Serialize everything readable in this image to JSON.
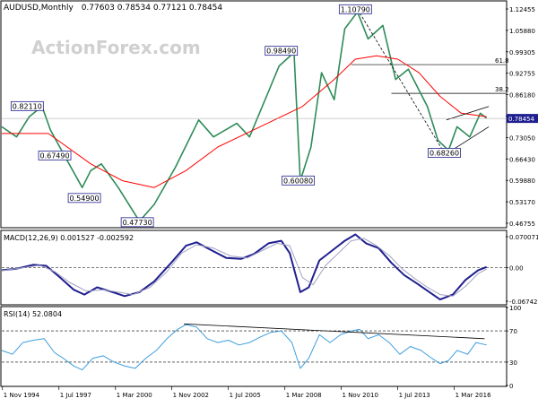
{
  "header": {
    "symbol": "AUDUSD,Monthly",
    "ohlc": "0.77603 0.78534 0.77121 0.78454"
  },
  "watermark": "ActionForex.com",
  "chart_data": [
    {
      "type": "line",
      "panel": "price",
      "title": "AUDUSD,Monthly  0.77603 0.78534 0.77121 0.78454",
      "y_ticks": [
        "1.12455",
        "1.05880",
        "0.99305",
        "0.92755",
        "0.86180",
        "0.79605",
        "0.73050",
        "0.66430",
        "0.59880",
        "0.53170",
        "0.46755"
      ],
      "ylim": [
        0.4636,
        1.13
      ],
      "last_price": "0.78454",
      "fibonacci": [
        {
          "label": "61.8",
          "value": 0.944
        },
        {
          "label": "38.2",
          "value": 0.8589
        }
      ],
      "annotations": [
        {
          "label": "0.82110",
          "x": 1996.0,
          "value": 0.8211
        },
        {
          "label": "0.67490",
          "x": 1997.3,
          "value": 0.6749
        },
        {
          "label": "0.54900",
          "x": 1998.7,
          "value": 0.549
        },
        {
          "label": "0.47730",
          "x": 2001.2,
          "value": 0.4773
        },
        {
          "label": "0.98490",
          "x": 2008.0,
          "value": 0.9849
        },
        {
          "label": "0.60080",
          "x": 2008.8,
          "value": 0.6008
        },
        {
          "label": "1.10790",
          "x": 2011.5,
          "value": 1.1079
        },
        {
          "label": "0.68260",
          "x": 2015.7,
          "value": 0.6826
        }
      ],
      "price_path": [
        [
          1994.8,
          0.76
        ],
        [
          1995.5,
          0.73
        ],
        [
          1996.1,
          0.79
        ],
        [
          1996.7,
          0.82
        ],
        [
          1997.1,
          0.75
        ],
        [
          1997.8,
          0.67
        ],
        [
          1998.6,
          0.58
        ],
        [
          1999.0,
          0.63
        ],
        [
          1999.5,
          0.65
        ],
        [
          2000.3,
          0.58
        ],
        [
          2001.3,
          0.48
        ],
        [
          2002.0,
          0.53
        ],
        [
          2003.0,
          0.64
        ],
        [
          2004.1,
          0.78
        ],
        [
          2004.8,
          0.73
        ],
        [
          2005.9,
          0.77
        ],
        [
          2006.5,
          0.73
        ],
        [
          2007.3,
          0.85
        ],
        [
          2007.9,
          0.94
        ],
        [
          2008.6,
          0.98
        ],
        [
          2008.9,
          0.6
        ],
        [
          2009.4,
          0.7
        ],
        [
          2009.9,
          0.92
        ],
        [
          2010.5,
          0.84
        ],
        [
          2011.0,
          1.05
        ],
        [
          2011.6,
          1.1
        ],
        [
          2012.1,
          1.02
        ],
        [
          2012.8,
          1.06
        ],
        [
          2013.4,
          0.9
        ],
        [
          2014.0,
          0.93
        ],
        [
          2014.9,
          0.82
        ],
        [
          2015.4,
          0.72
        ],
        [
          2015.9,
          0.69
        ],
        [
          2016.3,
          0.76
        ],
        [
          2016.9,
          0.73
        ],
        [
          2017.4,
          0.8
        ],
        [
          2017.7,
          0.785
        ]
      ],
      "moving_average": [
        [
          1994.8,
          0.74
        ],
        [
          1997.0,
          0.74
        ],
        [
          1999.0,
          0.65
        ],
        [
          2000.5,
          0.6
        ],
        [
          2002.0,
          0.58
        ],
        [
          2003.5,
          0.63
        ],
        [
          2005.0,
          0.7
        ],
        [
          2007.0,
          0.76
        ],
        [
          2009.0,
          0.82
        ],
        [
          2010.5,
          0.9
        ],
        [
          2011.5,
          0.96
        ],
        [
          2012.5,
          0.97
        ],
        [
          2013.5,
          0.96
        ],
        [
          2014.5,
          0.92
        ],
        [
          2015.5,
          0.85
        ],
        [
          2016.5,
          0.8
        ],
        [
          2017.7,
          0.79
        ]
      ],
      "trendlines": [
        {
          "name": "decline",
          "points": [
            [
              2011.6,
              1.1079
            ],
            [
              2015.7,
              0.6826
            ]
          ]
        },
        {
          "name": "channel-upper",
          "points": [
            [
              2015.8,
              0.78
            ],
            [
              2017.8,
              0.82
            ]
          ]
        },
        {
          "name": "channel-lower",
          "points": [
            [
              2015.8,
              0.68
            ],
            [
              2017.8,
              0.76
            ]
          ]
        }
      ]
    },
    {
      "type": "line",
      "panel": "macd",
      "title": "MACD(12,26,9) 0.001527 -0.002592",
      "y_ticks": [
        "0.070071",
        "0.00",
        "-0.067423"
      ],
      "ylim": [
        -0.074,
        0.0745
      ],
      "zero_line": 0,
      "series": [
        {
          "role": "macd",
          "points": [
            [
              1994.8,
              -0.005
            ],
            [
              1995.5,
              -0.002
            ],
            [
              1996.3,
              0.006
            ],
            [
              1996.9,
              0.004
            ],
            [
              1997.5,
              -0.018
            ],
            [
              1998.2,
              -0.045
            ],
            [
              1998.7,
              -0.055
            ],
            [
              1999.3,
              -0.04
            ],
            [
              1999.9,
              -0.048
            ],
            [
              2000.6,
              -0.058
            ],
            [
              2001.3,
              -0.05
            ],
            [
              2002.0,
              -0.028
            ],
            [
              2002.8,
              0.01
            ],
            [
              2003.5,
              0.045
            ],
            [
              2004.0,
              0.052
            ],
            [
              2004.6,
              0.038
            ],
            [
              2005.4,
              0.02
            ],
            [
              2006.1,
              0.018
            ],
            [
              2006.7,
              0.028
            ],
            [
              2007.4,
              0.05
            ],
            [
              2008.0,
              0.055
            ],
            [
              2008.4,
              0.03
            ],
            [
              2008.9,
              -0.05
            ],
            [
              2009.3,
              -0.04
            ],
            [
              2009.8,
              0.015
            ],
            [
              2010.4,
              0.035
            ],
            [
              2011.0,
              0.055
            ],
            [
              2011.5,
              0.068
            ],
            [
              2012.0,
              0.05
            ],
            [
              2012.6,
              0.04
            ],
            [
              2013.2,
              0.01
            ],
            [
              2013.8,
              -0.015
            ],
            [
              2014.4,
              -0.032
            ],
            [
              2015.0,
              -0.05
            ],
            [
              2015.5,
              -0.065
            ],
            [
              2016.1,
              -0.055
            ],
            [
              2016.7,
              -0.025
            ],
            [
              2017.3,
              -0.005
            ],
            [
              2017.7,
              0.0015
            ]
          ]
        },
        {
          "role": "signal",
          "points": [
            [
              1994.8,
              -0.006
            ],
            [
              1995.8,
              0.0
            ],
            [
              1996.6,
              0.005
            ],
            [
              1997.3,
              -0.008
            ],
            [
              1998.0,
              -0.03
            ],
            [
              1998.8,
              -0.048
            ],
            [
              1999.6,
              -0.045
            ],
            [
              2000.3,
              -0.05
            ],
            [
              2001.0,
              -0.055
            ],
            [
              2001.8,
              -0.04
            ],
            [
              2002.6,
              -0.008
            ],
            [
              2003.3,
              0.03
            ],
            [
              2004.0,
              0.047
            ],
            [
              2004.8,
              0.04
            ],
            [
              2005.6,
              0.024
            ],
            [
              2006.4,
              0.02
            ],
            [
              2007.1,
              0.035
            ],
            [
              2007.8,
              0.05
            ],
            [
              2008.4,
              0.045
            ],
            [
              2009.0,
              -0.02
            ],
            [
              2009.5,
              -0.035
            ],
            [
              2010.1,
              0.005
            ],
            [
              2010.7,
              0.03
            ],
            [
              2011.3,
              0.055
            ],
            [
              2011.9,
              0.06
            ],
            [
              2012.5,
              0.045
            ],
            [
              2013.1,
              0.025
            ],
            [
              2013.7,
              -0.002
            ],
            [
              2014.3,
              -0.022
            ],
            [
              2014.9,
              -0.04
            ],
            [
              2015.5,
              -0.055
            ],
            [
              2016.1,
              -0.058
            ],
            [
              2016.7,
              -0.038
            ],
            [
              2017.3,
              -0.012
            ],
            [
              2017.7,
              -0.0026
            ]
          ]
        }
      ]
    },
    {
      "type": "line",
      "panel": "rsi",
      "title": "RSI(14) 52.0804",
      "y_ticks": [
        "100",
        "70",
        "30",
        "0"
      ],
      "ylim": [
        0,
        100
      ],
      "levels": [
        70,
        30
      ],
      "series": [
        {
          "role": "rsi",
          "points": [
            [
              1994.8,
              45
            ],
            [
              1995.3,
              40
            ],
            [
              1995.8,
              55
            ],
            [
              1996.3,
              58
            ],
            [
              1996.8,
              60
            ],
            [
              1997.3,
              42
            ],
            [
              1997.7,
              35
            ],
            [
              1998.2,
              25
            ],
            [
              1998.6,
              20
            ],
            [
              1999.1,
              35
            ],
            [
              1999.6,
              38
            ],
            [
              2000.1,
              30
            ],
            [
              2000.6,
              25
            ],
            [
              2001.1,
              22
            ],
            [
              2001.6,
              35
            ],
            [
              2002.1,
              45
            ],
            [
              2002.6,
              60
            ],
            [
              2003.1,
              72
            ],
            [
              2003.5,
              78
            ],
            [
              2004.0,
              75
            ],
            [
              2004.5,
              60
            ],
            [
              2005.0,
              55
            ],
            [
              2005.5,
              58
            ],
            [
              2006.0,
              52
            ],
            [
              2006.5,
              55
            ],
            [
              2007.0,
              62
            ],
            [
              2007.5,
              68
            ],
            [
              2008.0,
              70
            ],
            [
              2008.5,
              55
            ],
            [
              2008.9,
              22
            ],
            [
              2009.3,
              35
            ],
            [
              2009.8,
              65
            ],
            [
              2010.3,
              55
            ],
            [
              2010.8,
              65
            ],
            [
              2011.3,
              70
            ],
            [
              2011.7,
              72
            ],
            [
              2012.1,
              60
            ],
            [
              2012.6,
              65
            ],
            [
              2013.1,
              55
            ],
            [
              2013.6,
              40
            ],
            [
              2014.1,
              50
            ],
            [
              2014.6,
              45
            ],
            [
              2015.1,
              35
            ],
            [
              2015.5,
              28
            ],
            [
              2015.9,
              32
            ],
            [
              2016.3,
              45
            ],
            [
              2016.8,
              40
            ],
            [
              2017.2,
              55
            ],
            [
              2017.7,
              52
            ]
          ]
        }
      ],
      "trendlines": [
        {
          "name": "rsi-divergence",
          "points": [
            [
              2003.4,
              79
            ],
            [
              2017.6,
              60
            ]
          ]
        }
      ]
    }
  ],
  "x_axis": {
    "labels": [
      "1 Nov 1994",
      "1 Jul 1997",
      "1 Mar 2000",
      "1 Nov 2002",
      "1 Jul 2005",
      "1 Mar 2008",
      "1 Nov 2010",
      "1 Jul 2013",
      "1 Mar 2016"
    ],
    "values": [
      1994.83,
      1997.5,
      2000.17,
      2002.83,
      2005.5,
      2008.17,
      2010.83,
      2013.5,
      2016.17
    ],
    "range": [
      1994.8,
      2018.6
    ]
  },
  "colors": {
    "price": "#2e8b57",
    "moving_average": "#ff0000",
    "macd": "#1f1f8f",
    "signal": "#a0a0c0",
    "rsi": "#3b9ddd",
    "annotation_border": "#1f1f8f",
    "last_price_bg": "#1f1f8f"
  }
}
